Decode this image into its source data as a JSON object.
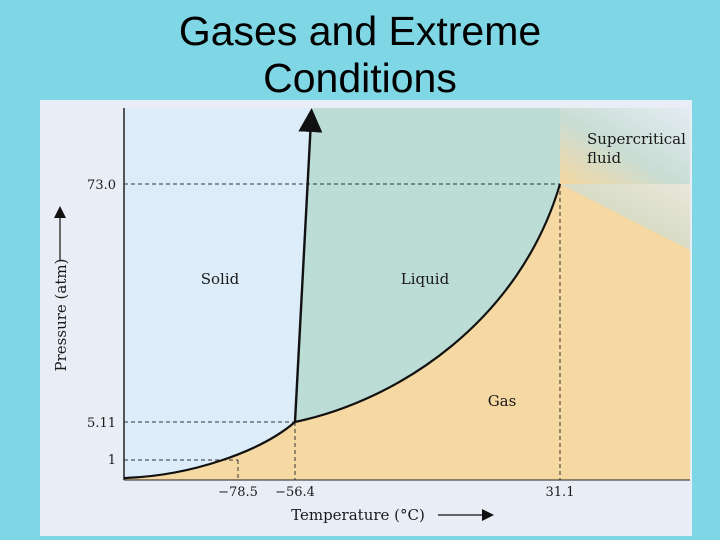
{
  "slide": {
    "title_line1": "Gases and Extreme",
    "title_line2": "Conditions"
  },
  "diagram": {
    "y_axis_label": "Pressure (atm)",
    "x_axis_label": "Temperature (°C)",
    "y_ticks": [
      "73.0",
      "5.11",
      "1"
    ],
    "x_ticks": [
      "−78.5",
      "−56.4",
      "31.1"
    ],
    "regions": {
      "solid": "Solid",
      "liquid": "Liquid",
      "gas": "Gas",
      "supercritical_line1": "Supercritical",
      "supercritical_line2": "fluid"
    },
    "colors": {
      "solid": "#dcecf8",
      "liquid": "#bcdcd6",
      "gas": "#f6d8a2",
      "background": "#7fd6e4"
    }
  }
}
